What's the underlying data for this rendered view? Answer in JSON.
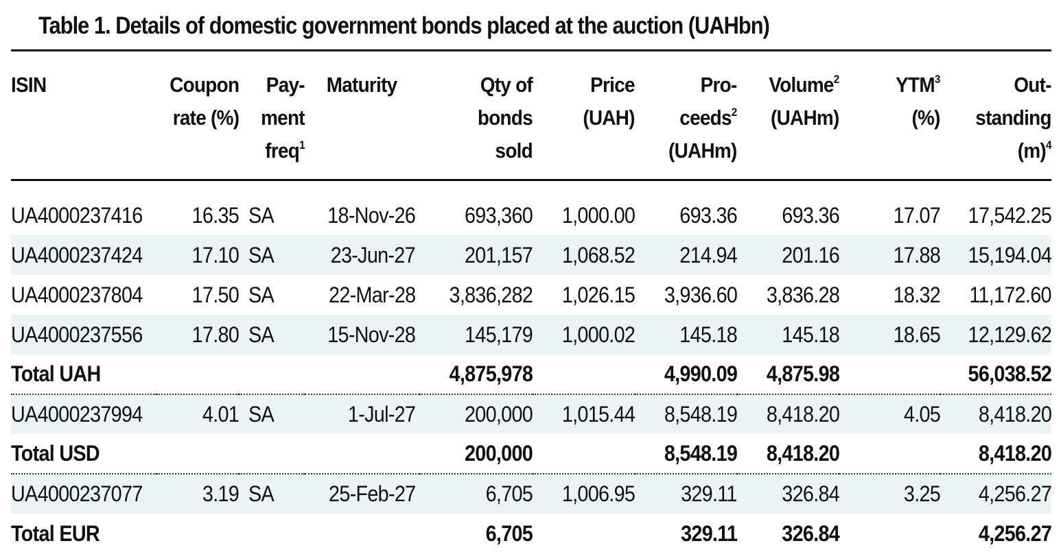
{
  "title": "Table 1. Details of domestic government bonds placed at the auction (UAHbn)",
  "headers": {
    "isin": "ISIN",
    "coupon_1": "Coupon",
    "coupon_2": "rate (%)",
    "payment_1": "Pay-",
    "payment_2": "ment",
    "payment_3": "freq",
    "payment_sup": "1",
    "maturity": "Maturity",
    "qty_1": "Qty of",
    "qty_2": "bonds",
    "qty_3": "sold",
    "price_1": "Price",
    "price_2": "(UAH)",
    "proceeds_1": "Pro-",
    "proceeds_2": "ceeds",
    "proceeds_sup": "2",
    "proceeds_3": "(UAHm)",
    "volume_1": "Volume",
    "volume_sup": "2",
    "volume_2": "(UAHm)",
    "ytm_1": "YTM",
    "ytm_sup": "3",
    "ytm_2": "(%)",
    "outstanding_1": "Out-",
    "outstanding_2": "standing",
    "outstanding_3": "(m)",
    "outstanding_sup": "4"
  },
  "rows": [
    {
      "isin": "UA4000237416",
      "coupon": "16.35",
      "freq": "SA",
      "maturity": "18-Nov-26",
      "qty": "693,360",
      "price": "1,000.00",
      "proceeds": "693.36",
      "volume": "693.36",
      "ytm": "17.07",
      "outstanding": "17,542.25"
    },
    {
      "isin": "UA4000237424",
      "coupon": "17.10",
      "freq": "SA",
      "maturity": "23-Jun-27",
      "qty": "201,157",
      "price": "1,068.52",
      "proceeds": "214.94",
      "volume": "201.16",
      "ytm": "17.88",
      "outstanding": "15,194.04"
    },
    {
      "isin": "UA4000237804",
      "coupon": "17.50",
      "freq": "SA",
      "maturity": "22-Mar-28",
      "qty": "3,836,282",
      "price": "1,026.15",
      "proceeds": "3,936.60",
      "volume": "3,836.28",
      "ytm": "18.32",
      "outstanding": "11,172.60"
    },
    {
      "isin": "UA4000237556",
      "coupon": "17.80",
      "freq": "SA",
      "maturity": "15-Nov-28",
      "qty": "145,179",
      "price": "1,000.02",
      "proceeds": "145.18",
      "volume": "145.18",
      "ytm": "18.65",
      "outstanding": "12,129.62"
    },
    {
      "isin": "UA4000237994",
      "coupon": "4.01",
      "freq": "SA",
      "maturity": "1-Jul-27",
      "qty": "200,000",
      "price": "1,015.44",
      "proceeds": "8,548.19",
      "volume": "8,418.20",
      "ytm": "4.05",
      "outstanding": "8,418.20"
    },
    {
      "isin": "UA4000237077",
      "coupon": "3.19",
      "freq": "SA",
      "maturity": "25-Feb-27",
      "qty": "6,705",
      "price": "1,006.95",
      "proceeds": "329.11",
      "volume": "326.84",
      "ytm": "3.25",
      "outstanding": "4,256.27"
    }
  ],
  "totals": [
    {
      "label": "Total UAH",
      "qty": "4,875,978",
      "proceeds": "4,990.09",
      "volume": "4,875.98",
      "outstanding": "56,038.52"
    },
    {
      "label": "Total USD",
      "qty": "200,000",
      "proceeds": "8,548.19",
      "volume": "8,418.20",
      "outstanding": "8,418.20"
    },
    {
      "label": "Total EUR",
      "qty": "6,705",
      "proceeds": "329.11",
      "volume": "326.84",
      "outstanding": "4,256.27"
    }
  ]
}
